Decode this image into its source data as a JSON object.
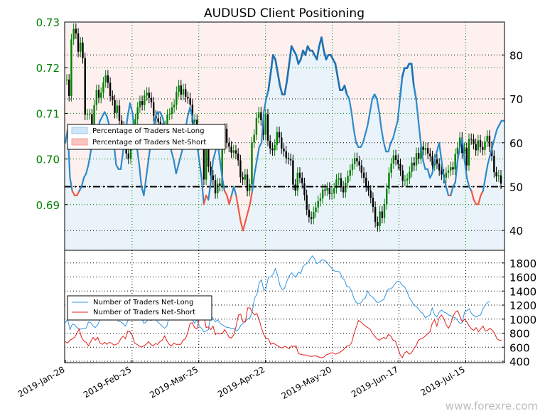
{
  "chart_data": [
    {
      "type": "candlestick+line",
      "title": "AUDUSD Client Positioning",
      "left_axis": {
        "ticks": [
          0.69,
          0.7,
          0.71,
          0.72,
          0.73
        ],
        "range": [
          0.68,
          0.73
        ]
      },
      "right_axis": {
        "ticks": [
          40,
          50,
          60,
          70,
          80
        ],
        "range": [
          35.5,
          87.5
        ]
      },
      "reference_line": {
        "value": 50,
        "style": "dash-dot"
      },
      "legend": {
        "placement": "center-left",
        "entries": [
          {
            "label": "Percentage of Traders Net-Long",
            "color": "#9fcbea"
          },
          {
            "label": "Percentage of Traders Net-Short",
            "color": "#f4a09a"
          }
        ]
      },
      "x_ticks": [
        "2019-Jan-28",
        "2019-Feb-25",
        "2019-Mar-25",
        "2019-Apr-22",
        "2019-May-20",
        "2019-Jun-17",
        "2019-Jul-15"
      ],
      "series": [
        {
          "name": "Percentage of Traders Net-Long",
          "color_long": "#2f8ac9",
          "color_short": "#ef5a43",
          "values": [
            60,
            63,
            52,
            49,
            48,
            48,
            49,
            50,
            52,
            53,
            55,
            58,
            61,
            62,
            63,
            65,
            66,
            67,
            66,
            64,
            62,
            60,
            55,
            54,
            54,
            58,
            62,
            66,
            69,
            67,
            63,
            59,
            55,
            50,
            48,
            52,
            56,
            60,
            63,
            66,
            67,
            67,
            66,
            64,
            62,
            60,
            58,
            56,
            53,
            55,
            57,
            59,
            63,
            66,
            68,
            66,
            63,
            60,
            56,
            52,
            46,
            48,
            47,
            51,
            56,
            58,
            60,
            56,
            52,
            49,
            48,
            46,
            48,
            50,
            48,
            45,
            42,
            40,
            42,
            44,
            46,
            49,
            53,
            56,
            59,
            60,
            67,
            70,
            72,
            76,
            80,
            79,
            76,
            73,
            71,
            71,
            74,
            78,
            82,
            81,
            80,
            78,
            79,
            81,
            80,
            82,
            81,
            81,
            80,
            79,
            82,
            84,
            81,
            79,
            80,
            80,
            79,
            78,
            75,
            72,
            72,
            73,
            71,
            70,
            67,
            63,
            60,
            59,
            59,
            60,
            62,
            64,
            67,
            70,
            71,
            70,
            67,
            63,
            60,
            58,
            58,
            60,
            61,
            63,
            65,
            70,
            75,
            77,
            77,
            78,
            78,
            73,
            70,
            65,
            60,
            56,
            54,
            54,
            52,
            53,
            56,
            58,
            60,
            56,
            52,
            50,
            48,
            48,
            50,
            51,
            56,
            59,
            61,
            56,
            52,
            50,
            49,
            47,
            46,
            46,
            48,
            49,
            52,
            55,
            57,
            59,
            61,
            63,
            64,
            65,
            65
          ]
        }
      ],
      "ohlc_close": [
        0.7174,
        0.7138,
        0.7262,
        0.7285,
        0.7275,
        0.7235,
        0.7255,
        0.7221,
        0.7097,
        0.7098,
        0.7098,
        0.7071,
        0.7118,
        0.7151,
        0.7134,
        0.7145,
        0.7168,
        0.7183,
        0.7167,
        0.7138,
        0.7129,
        0.7101,
        0.7117,
        0.7084,
        0.7071,
        0.7048,
        0.7012,
        0.7001,
        0.7044,
        0.7077,
        0.7087,
        0.7113,
        0.7127,
        0.7118,
        0.7139,
        0.7145,
        0.7134,
        0.7124,
        0.7095,
        0.7089,
        0.7081,
        0.7067,
        0.7064,
        0.7072,
        0.7097,
        0.7099,
        0.7113,
        0.7119,
        0.7147,
        0.7161,
        0.7141,
        0.7153,
        0.7136,
        0.7133,
        0.7119,
        0.708,
        0.7086,
        0.7032,
        0.7045,
        0.7039,
        0.6955,
        0.7041,
        0.6983,
        0.6964,
        0.6954,
        0.6925,
        0.6946,
        0.6941,
        0.7024,
        0.7066,
        0.7035,
        0.7027,
        0.7014,
        0.7019,
        0.7012,
        0.6997,
        0.696,
        0.6955,
        0.6966,
        0.693,
        0.6945,
        0.7036,
        0.7053,
        0.709,
        0.7102,
        0.7085,
        0.7053,
        0.7098,
        0.704,
        0.7023,
        0.7019,
        0.7031,
        0.7059,
        0.7047,
        0.7023,
        0.7017,
        0.7002,
        0.7,
        0.6997,
        0.6944,
        0.6931,
        0.697,
        0.6959,
        0.6947,
        0.6921,
        0.6889,
        0.6873,
        0.6869,
        0.6884,
        0.6894,
        0.6908,
        0.6914,
        0.6933,
        0.6931,
        0.6937,
        0.6923,
        0.6925,
        0.6936,
        0.6955,
        0.6958,
        0.694,
        0.6927,
        0.6948,
        0.6963,
        0.6976,
        0.6989,
        0.7002,
        0.6995,
        0.6986,
        0.697,
        0.6959,
        0.694,
        0.6931,
        0.6915,
        0.6895,
        0.6862,
        0.6853,
        0.6885,
        0.6871,
        0.6901,
        0.6935,
        0.697,
        0.699,
        0.7008,
        0.6998,
        0.6989,
        0.6975,
        0.6952,
        0.6953,
        0.6957,
        0.6972,
        0.6992,
        0.6986,
        0.7013,
        0.7001,
        0.7027,
        0.702,
        0.7024,
        0.7012,
        0.7006,
        0.6986,
        0.6999,
        0.699,
        0.6975,
        0.6966,
        0.6959,
        0.697,
        0.6975,
        0.6982,
        0.6977,
        0.7011,
        0.7025,
        0.7047,
        0.7013,
        0.7024,
        0.6986,
        0.7044,
        0.7043,
        0.7033,
        0.7019,
        0.7041,
        0.7026,
        0.702,
        0.7038,
        0.7051,
        0.7027,
        0.7007,
        0.6971,
        0.6962,
        0.6964,
        0.6946
      ]
    },
    {
      "type": "line",
      "right_axis": {
        "ticks": [
          400,
          600,
          800,
          1000,
          1200,
          1400,
          1600,
          1800
        ],
        "range": [
          380,
          1980
        ]
      },
      "legend": {
        "placement": "center-left",
        "entries": [
          {
            "label": "Number of Traders Net-Long",
            "color": "#3495e0"
          },
          {
            "label": "Number of Traders Net-Short",
            "color": "#e1201b"
          }
        ]
      },
      "series": [
        {
          "name": "Number of Traders Net-Long",
          "color": "#3495e0",
          "values": [
            950,
            1000,
            850,
            930,
            920,
            880,
            860,
            860,
            870,
            870,
            960,
            950,
            900,
            880,
            920,
            1000,
            1090,
            1140,
            1180,
            1130,
            1120,
            1090,
            1050,
            970,
            960,
            940,
            900,
            970,
            1050,
            1120,
            1130,
            1110,
            1150,
            1020,
            940,
            960,
            1000,
            980,
            1000,
            1020,
            960,
            930,
            900,
            870,
            900,
            1050,
            1160,
            1200,
            1130,
            1140,
            1110,
            1080,
            1040,
            1000,
            1050,
            1000,
            940,
            990,
            900,
            870,
            820,
            830,
            850,
            1050,
            1010,
            960,
            990,
            940,
            920,
            900,
            880,
            880,
            860,
            870,
            830,
            850,
            910,
            940,
            970,
            1000,
            1020,
            1110,
            1300,
            1350,
            1520,
            1560,
            1410,
            1440,
            1600,
            1600,
            1640,
            1720,
            1620,
            1480,
            1420,
            1440,
            1540,
            1610,
            1660,
            1620,
            1600,
            1670,
            1650,
            1750,
            1780,
            1800,
            1850,
            1900,
            1860,
            1790,
            1810,
            1840,
            1840,
            1820,
            1780,
            1740,
            1700,
            1680,
            1680,
            1670,
            1580,
            1560,
            1460,
            1460,
            1400,
            1300,
            1240,
            1220,
            1230,
            1280,
            1300,
            1400,
            1340,
            1320,
            1280,
            1240,
            1240,
            1260,
            1280,
            1360,
            1430,
            1430,
            1460,
            1510,
            1540,
            1530,
            1480,
            1460,
            1400,
            1310,
            1260,
            1200,
            1180,
            1150,
            1100,
            1080,
            1020,
            1040,
            1060,
            1160,
            1060,
            1030,
            1100,
            1130,
            1100,
            1090,
            1060,
            1050,
            1030,
            1020,
            980,
            940,
            950,
            1100,
            1120,
            1150,
            1080,
            1050,
            1030,
            1050,
            1060,
            1150,
            1200,
            1240,
            1250
          ]
        },
        {
          "name": "Number of Traders Net-Short",
          "color": "#e1201b",
          "values": [
            680,
            660,
            700,
            720,
            740,
            800,
            860,
            740,
            690,
            670,
            620,
            680,
            740,
            700,
            740,
            660,
            640,
            670,
            640,
            670,
            660,
            630,
            640,
            660,
            720,
            760,
            720,
            830,
            820,
            770,
            660,
            640,
            620,
            600,
            620,
            640,
            680,
            640,
            620,
            650,
            640,
            680,
            700,
            760,
            690,
            640,
            620,
            660,
            640,
            640,
            640,
            700,
            720,
            800,
            940,
            950,
            880,
            860,
            1000,
            1040,
            1060,
            880,
            890,
            850,
            900,
            780,
            800,
            790,
            790,
            850,
            800,
            740,
            730,
            780,
            900,
            1060,
            1070,
            960,
            960,
            1160,
            1160,
            1100,
            1060,
            1080,
            990,
            870,
            780,
            720,
            720,
            640,
            660,
            640,
            620,
            600,
            590,
            610,
            600,
            580,
            620,
            610,
            620,
            510,
            500,
            490,
            490,
            480,
            470,
            470,
            480,
            470,
            460,
            450,
            460,
            490,
            500,
            520,
            520,
            500,
            510,
            530,
            550,
            580,
            620,
            620,
            660,
            780,
            880,
            980,
            960,
            930,
            900,
            880,
            860,
            800,
            760,
            720,
            700,
            720,
            740,
            720,
            780,
            760,
            700,
            690,
            600,
            500,
            450,
            520,
            540,
            500,
            520,
            580,
            620,
            700,
            720,
            730,
            760,
            790,
            820,
            940,
            990,
            900,
            1020,
            1060,
            1010,
            920,
            870,
            930,
            1040,
            1100,
            1120,
            1040,
            960,
            1000,
            960,
            900,
            860,
            840,
            880,
            820,
            860,
            900,
            830,
            840,
            870,
            840,
            800,
            720,
            700,
            700
          ]
        }
      ]
    }
  ],
  "watermark": "www.forexre.com"
}
